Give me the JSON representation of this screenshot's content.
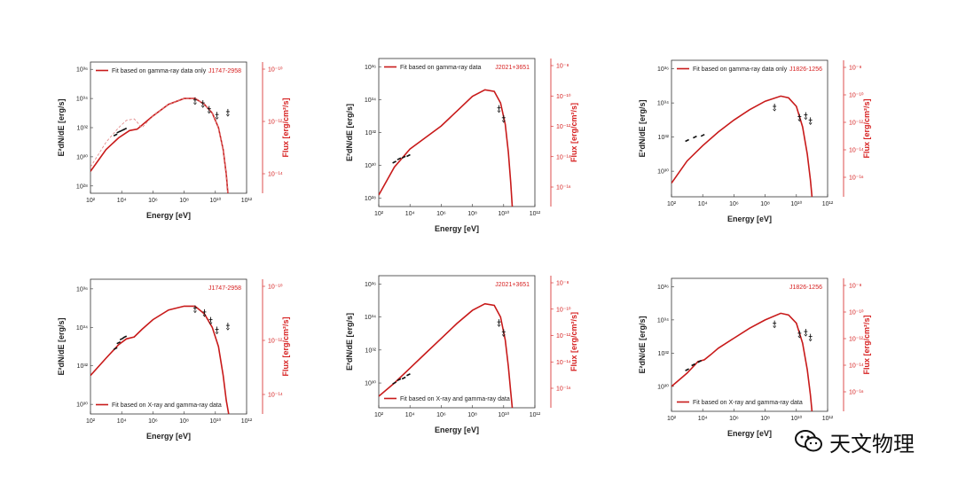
{
  "chart_data": [
    {
      "type": "line",
      "source": "J1747-2958",
      "legend": "Fit based on gamma-ray data only",
      "xlabel": "Energy [eV]",
      "ylabel": "E²dN/dE [erg/s]",
      "ylabel_right": "Flux [erg/cm²/s]",
      "xlim": [
        2,
        12
      ],
      "ylim": [
        27.5,
        36.5
      ],
      "x_ticks": [
        2,
        4,
        6,
        8,
        10,
        12
      ],
      "y_ticks": [
        28,
        30,
        32,
        34,
        36
      ],
      "y_ticks_right": [
        -10,
        -12,
        -14
      ],
      "log_scale": true,
      "series": [
        {
          "style": "solid",
          "x": [
            2,
            3,
            3.8,
            4.5,
            5,
            6,
            7,
            8,
            8.7,
            9.3,
            9.8,
            10.2,
            10.5,
            10.7,
            10.8
          ],
          "y": [
            29.0,
            30.5,
            31.3,
            31.8,
            31.9,
            32.8,
            33.6,
            34.0,
            34.0,
            33.6,
            33.0,
            32.0,
            30.5,
            28.8,
            27.5
          ]
        },
        {
          "style": "dashed",
          "x": [
            2,
            3,
            3.8,
            4.3,
            4.8,
            5.3,
            6,
            7,
            8,
            8.7,
            9.3,
            9.8,
            10.2,
            10.5,
            10.7,
            10.8
          ],
          "y": [
            29.3,
            31.0,
            32.0,
            32.5,
            32.6,
            32.0,
            32.8,
            33.6,
            34.0,
            34.0,
            33.6,
            33.0,
            32.0,
            30.5,
            28.8,
            27.5
          ]
        },
        {
          "style": "points",
          "x": [
            3.6,
            3.8,
            4.0,
            4.2,
            8.7,
            9.2,
            9.6,
            10.1,
            10.8
          ],
          "y": [
            31.5,
            31.7,
            31.8,
            31.9,
            33.9,
            33.7,
            33.3,
            32.9,
            33.1
          ]
        }
      ]
    },
    {
      "type": "line",
      "source": "J2021+3651",
      "legend": "Fit based on gamma-ray data",
      "xlabel": "Energy [eV]",
      "ylabel": "E²dN/dE [erg/s]",
      "ylabel_right": "Flux [erg/cm²/s]",
      "xlim": [
        2,
        12
      ],
      "ylim": [
        27.5,
        36.5
      ],
      "x_ticks": [
        2,
        4,
        6,
        8,
        10,
        12
      ],
      "y_ticks": [
        28,
        30,
        32,
        34,
        36
      ],
      "y_ticks_right": [
        -8,
        -10,
        -12,
        -14,
        -16
      ],
      "log_scale": true,
      "series": [
        {
          "style": "solid",
          "x": [
            2,
            3,
            4,
            5,
            6,
            7,
            8,
            8.8,
            9.4,
            9.8,
            10.1,
            10.3,
            10.45,
            10.55
          ],
          "y": [
            28.2,
            29.9,
            31.0,
            31.7,
            32.4,
            33.3,
            34.2,
            34.6,
            34.5,
            33.8,
            32.5,
            30.8,
            29.0,
            27.5
          ]
        },
        {
          "style": "points",
          "x": [
            3.0,
            3.3,
            3.6,
            3.9,
            9.7,
            10.0
          ],
          "y": [
            30.2,
            30.4,
            30.5,
            30.6,
            33.5,
            32.9
          ]
        }
      ]
    },
    {
      "type": "line",
      "source": "J1826-1256",
      "legend": "Fit based on gamma-ray data only",
      "xlabel": "Energy [eV]",
      "ylabel": "E²dN/dE [erg/s]",
      "ylabel_right": "Flux [erg/cm²/s]",
      "xlim": [
        2,
        12
      ],
      "ylim": [
        28.5,
        36.5
      ],
      "x_ticks": [
        2,
        4,
        6,
        8,
        10,
        12
      ],
      "y_ticks": [
        30,
        32,
        34,
        36
      ],
      "y_ticks_right": [
        -8,
        -10,
        -12,
        -14,
        -16
      ],
      "log_scale": true,
      "series": [
        {
          "style": "solid",
          "x": [
            2,
            3,
            4,
            5,
            6,
            7,
            8,
            9,
            9.5,
            10,
            10.4,
            10.7,
            10.9,
            11.0
          ],
          "y": [
            29.3,
            30.6,
            31.5,
            32.3,
            33.0,
            33.6,
            34.1,
            34.4,
            34.3,
            33.8,
            32.6,
            31.0,
            29.5,
            28.5
          ]
        },
        {
          "style": "points",
          "x": [
            3.0,
            3.5,
            4.0,
            8.6,
            10.2,
            10.6,
            10.9
          ],
          "y": [
            31.8,
            32.0,
            32.1,
            33.8,
            33.2,
            33.3,
            33.0
          ]
        }
      ]
    },
    {
      "type": "line",
      "source": "J1747-2958",
      "legend": "Fit based on X-ray and gamma-ray data",
      "xlabel": "Energy [eV]",
      "ylabel": "E²dN/dE [erg/s]",
      "ylabel_right": "Flux [erg/cm²/s]",
      "xlim": [
        2,
        12
      ],
      "ylim": [
        29.5,
        36.5
      ],
      "x_ticks": [
        2,
        4,
        6,
        8,
        10,
        12
      ],
      "y_ticks": [
        30,
        32,
        34,
        36
      ],
      "y_ticks_right": [
        -10,
        -12,
        -14
      ],
      "log_scale": true,
      "series": [
        {
          "style": "solid",
          "x": [
            2,
            3,
            3.8,
            4.3,
            4.8,
            5.3,
            6,
            7,
            8,
            8.7,
            9.3,
            9.8,
            10.2,
            10.5,
            10.7,
            10.85
          ],
          "y": [
            31.5,
            32.4,
            33.1,
            33.4,
            33.5,
            33.9,
            34.4,
            34.9,
            35.1,
            35.1,
            34.7,
            34.0,
            33.0,
            31.5,
            30.2,
            29.5
          ]
        },
        {
          "style": "points",
          "x": [
            3.6,
            3.8,
            4.0,
            4.2,
            8.7,
            9.3,
            9.7,
            10.1,
            10.8
          ],
          "y": [
            32.9,
            33.2,
            33.4,
            33.5,
            35.0,
            34.8,
            34.4,
            33.9,
            34.1
          ]
        }
      ]
    },
    {
      "type": "line",
      "source": "J2021+3651",
      "legend": "Fit based on X-ray and gamma-ray data",
      "xlabel": "Energy [eV]",
      "ylabel": "E²dN/dE [erg/s]",
      "ylabel_right": "Flux [erg/cm²/s]",
      "xlim": [
        2,
        12
      ],
      "ylim": [
        28.5,
        36.5
      ],
      "x_ticks": [
        2,
        4,
        6,
        8,
        10,
        12
      ],
      "y_ticks": [
        30,
        32,
        34,
        36
      ],
      "y_ticks_right": [
        -8,
        -10,
        -12,
        -14,
        -16
      ],
      "log_scale": true,
      "series": [
        {
          "style": "solid",
          "x": [
            2,
            3,
            4,
            5,
            6,
            7,
            8,
            8.8,
            9.4,
            9.8,
            10.1,
            10.3,
            10.45,
            10.55
          ],
          "y": [
            29.2,
            30.0,
            30.9,
            31.8,
            32.7,
            33.6,
            34.4,
            34.8,
            34.7,
            34.0,
            32.6,
            31.0,
            29.5,
            28.5
          ]
        },
        {
          "style": "points",
          "x": [
            3.0,
            3.3,
            3.6,
            3.9,
            9.7,
            10.0
          ],
          "y": [
            30.0,
            30.2,
            30.3,
            30.5,
            33.7,
            33.1
          ]
        }
      ]
    },
    {
      "type": "line",
      "source": "J1826-1256",
      "legend": "Fit based on X-ray and gamma-ray data",
      "xlabel": "Energy [eV]",
      "ylabel": "E²dN/dE [erg/s]",
      "ylabel_right": "Flux [erg/cm²/s]",
      "xlim": [
        2,
        12
      ],
      "ylim": [
        28.5,
        36.5
      ],
      "x_ticks": [
        2,
        4,
        6,
        8,
        10,
        12
      ],
      "y_ticks": [
        30,
        32,
        34,
        36
      ],
      "y_ticks_right": [
        -8,
        -10,
        -12,
        -14,
        -16
      ],
      "log_scale": true,
      "series": [
        {
          "style": "solid",
          "x": [
            2,
            3,
            3.7,
            4.1,
            4.5,
            5,
            6,
            7,
            8,
            9,
            9.5,
            10,
            10.4,
            10.7,
            10.9,
            11.0
          ],
          "y": [
            30.0,
            30.8,
            31.5,
            31.6,
            31.9,
            32.3,
            32.9,
            33.5,
            34.0,
            34.4,
            34.3,
            33.8,
            32.6,
            31.0,
            29.5,
            28.5
          ]
        },
        {
          "style": "points",
          "x": [
            3.0,
            3.4,
            3.8,
            8.6,
            10.2,
            10.6,
            10.9
          ],
          "y": [
            31.0,
            31.3,
            31.5,
            33.8,
            33.2,
            33.3,
            33.0
          ]
        }
      ]
    }
  ],
  "watermark": {
    "icon": "wechat-icon",
    "text": "天文物理"
  },
  "colors": {
    "fit": "#c81a1a",
    "dashed": "#e08080",
    "points": "#111111",
    "right_axis": "#d62020"
  }
}
